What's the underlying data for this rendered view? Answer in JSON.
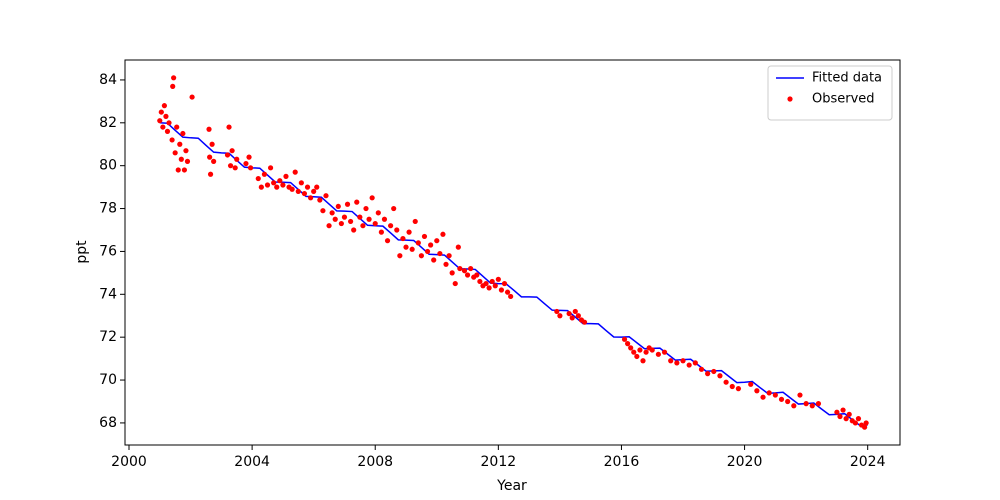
{
  "chart_data": {
    "type": "line",
    "x_label": "Year",
    "y_label": "ppt",
    "xlim": [
      1999.87,
      2025.05
    ],
    "ylim": [
      66.97,
      84.93
    ],
    "xticks": [
      2000,
      2004,
      2008,
      2012,
      2016,
      2020,
      2024
    ],
    "yticks": [
      68,
      70,
      72,
      74,
      76,
      78,
      80,
      82,
      84
    ],
    "grid": false,
    "legend": "upper right",
    "series": [
      {
        "name": "Fitted data",
        "type": "line",
        "color": "#0000ff",
        "x": [
          2001,
          2001.25,
          2001.5,
          2001.75,
          2002,
          2002.25,
          2002.5,
          2002.75,
          2003,
          2003.25,
          2003.5,
          2003.75,
          2004,
          2004.25,
          2004.5,
          2004.75,
          2005,
          2005.25,
          2005.5,
          2005.75,
          2006,
          2006.25,
          2006.5,
          2006.75,
          2007,
          2007.25,
          2007.5,
          2007.75,
          2008,
          2008.25,
          2008.5,
          2008.75,
          2009,
          2009.25,
          2009.5,
          2009.75,
          2010,
          2010.25,
          2010.5,
          2010.75,
          2011,
          2011.25,
          2011.5,
          2011.75,
          2012,
          2012.25,
          2012.5,
          2012.75,
          2013,
          2013.25,
          2013.5,
          2013.75,
          2014,
          2014.25,
          2014.5,
          2014.75,
          2015,
          2015.25,
          2015.5,
          2015.75,
          2016,
          2016.25,
          2016.5,
          2016.75,
          2017,
          2017.25,
          2017.5,
          2017.75,
          2018,
          2018.25,
          2018.5,
          2018.75,
          2019,
          2019.25,
          2019.5,
          2019.75,
          2020,
          2020.25,
          2020.5,
          2020.75,
          2021,
          2021.25,
          2021.5,
          2021.75,
          2022,
          2022.25,
          2022.5,
          2022.75,
          2023,
          2023.25,
          2023.5,
          2023.75,
          2024
        ],
        "values": [
          82.0,
          81.98,
          81.65,
          81.33,
          81.3,
          81.28,
          80.95,
          80.63,
          80.6,
          80.58,
          80.25,
          79.93,
          79.9,
          79.88,
          79.56,
          79.24,
          79.23,
          79.21,
          78.89,
          78.57,
          78.55,
          78.53,
          78.21,
          77.89,
          77.88,
          77.86,
          77.54,
          77.22,
          77.2,
          77.18,
          76.86,
          76.54,
          76.53,
          76.51,
          76.19,
          75.87,
          75.85,
          75.83,
          75.51,
          75.19,
          75.18,
          75.16,
          74.84,
          74.52,
          74.5,
          74.49,
          74.19,
          73.88,
          73.88,
          73.87,
          73.56,
          73.26,
          73.25,
          73.24,
          72.94,
          72.63,
          72.63,
          72.62,
          72.31,
          72.01,
          72.0,
          72.02,
          71.74,
          71.46,
          71.48,
          71.49,
          71.21,
          70.93,
          70.95,
          70.97,
          70.69,
          70.41,
          70.43,
          70.44,
          70.16,
          69.88,
          69.9,
          69.93,
          69.65,
          69.38,
          69.4,
          69.43,
          69.15,
          68.88,
          68.9,
          68.93,
          68.65,
          68.38,
          68.4,
          68.43,
          68.15,
          67.88,
          67.9
        ]
      },
      {
        "name": "Observed",
        "type": "scatter",
        "color": "#ff0000",
        "x": [
          2001.0,
          2001.05,
          2001.1,
          2001.15,
          2001.2,
          2001.25,
          2001.3,
          2001.4,
          2001.42,
          2001.45,
          2001.5,
          2001.55,
          2001.6,
          2001.65,
          2001.7,
          2001.75,
          2001.8,
          2001.85,
          2001.9,
          2002.05,
          2002.6,
          2002.62,
          2002.65,
          2002.7,
          2002.75,
          2003.2,
          2003.25,
          2003.3,
          2003.35,
          2003.45,
          2003.5,
          2003.8,
          2003.9,
          2003.95,
          2004.2,
          2004.3,
          2004.4,
          2004.5,
          2004.6,
          2004.7,
          2004.8,
          2004.9,
          2005.0,
          2005.1,
          2005.2,
          2005.3,
          2005.4,
          2005.5,
          2005.6,
          2005.7,
          2005.8,
          2005.9,
          2006.0,
          2006.1,
          2006.2,
          2006.3,
          2006.4,
          2006.5,
          2006.6,
          2006.7,
          2006.8,
          2006.9,
          2007.0,
          2007.1,
          2007.2,
          2007.3,
          2007.4,
          2007.5,
          2007.6,
          2007.7,
          2007.8,
          2007.9,
          2008.0,
          2008.1,
          2008.2,
          2008.3,
          2008.4,
          2008.5,
          2008.6,
          2008.7,
          2008.8,
          2008.9,
          2009.0,
          2009.1,
          2009.2,
          2009.3,
          2009.4,
          2009.5,
          2009.6,
          2009.7,
          2009.8,
          2009.9,
          2010.0,
          2010.1,
          2010.2,
          2010.3,
          2010.4,
          2010.5,
          2010.6,
          2010.7,
          2010.75,
          2010.9,
          2011.0,
          2011.1,
          2011.2,
          2011.3,
          2011.4,
          2011.5,
          2011.6,
          2011.7,
          2011.8,
          2011.9,
          2012.0,
          2012.1,
          2012.2,
          2012.3,
          2012.4,
          2013.9,
          2014.0,
          2014.3,
          2014.4,
          2014.5,
          2014.6,
          2014.7,
          2014.8,
          2016.1,
          2016.2,
          2016.3,
          2016.4,
          2016.5,
          2016.6,
          2016.7,
          2016.8,
          2016.9,
          2017.0,
          2017.2,
          2017.4,
          2017.6,
          2017.8,
          2018.0,
          2018.2,
          2018.4,
          2018.6,
          2018.8,
          2019.0,
          2019.2,
          2019.4,
          2019.6,
          2019.8,
          2020.2,
          2020.4,
          2020.6,
          2020.8,
          2021.0,
          2021.2,
          2021.4,
          2021.6,
          2021.8,
          2022.0,
          2022.2,
          2022.4,
          2023.0,
          2023.1,
          2023.2,
          2023.3,
          2023.4,
          2023.5,
          2023.6,
          2023.7,
          2023.8,
          2023.9,
          2023.95
        ],
        "values": [
          82.1,
          82.5,
          81.8,
          82.8,
          82.3,
          81.6,
          82.0,
          81.2,
          83.7,
          84.1,
          80.6,
          81.8,
          79.8,
          81.0,
          80.3,
          81.5,
          79.8,
          80.7,
          80.2,
          83.2,
          81.7,
          80.4,
          79.6,
          81.0,
          80.2,
          80.5,
          81.8,
          80.0,
          80.7,
          79.9,
          80.3,
          80.1,
          80.4,
          79.9,
          79.4,
          79.0,
          79.6,
          79.1,
          79.9,
          79.2,
          79.0,
          79.3,
          79.1,
          79.5,
          79.0,
          78.9,
          79.7,
          78.8,
          79.2,
          78.7,
          79.0,
          78.5,
          78.8,
          79.0,
          78.4,
          77.9,
          78.6,
          77.2,
          77.8,
          77.5,
          78.1,
          77.3,
          77.6,
          78.2,
          77.4,
          77.0,
          78.3,
          77.6,
          77.2,
          78.0,
          77.5,
          78.5,
          77.3,
          77.8,
          76.9,
          77.5,
          76.5,
          77.2,
          78.0,
          77.0,
          75.8,
          76.6,
          76.2,
          76.9,
          76.1,
          77.4,
          76.4,
          75.8,
          76.7,
          76.0,
          76.3,
          75.6,
          76.5,
          75.9,
          76.8,
          75.4,
          75.8,
          75.0,
          74.5,
          76.2,
          75.2,
          75.1,
          74.9,
          75.2,
          74.8,
          74.9,
          74.6,
          74.4,
          74.5,
          74.3,
          74.6,
          74.4,
          74.7,
          74.2,
          74.5,
          74.1,
          73.9,
          73.2,
          73.0,
          73.1,
          72.9,
          73.2,
          73.0,
          72.8,
          72.7,
          71.9,
          71.7,
          71.5,
          71.3,
          71.1,
          71.4,
          70.9,
          71.3,
          71.5,
          71.4,
          71.2,
          71.3,
          70.9,
          70.8,
          70.9,
          70.7,
          70.8,
          70.5,
          70.3,
          70.4,
          70.2,
          69.9,
          69.7,
          69.6,
          69.8,
          69.5,
          69.2,
          69.4,
          69.3,
          69.1,
          69.0,
          68.8,
          69.3,
          68.9,
          68.8,
          68.9,
          68.5,
          68.3,
          68.6,
          68.2,
          68.4,
          68.1,
          68.0,
          68.2,
          67.9,
          67.8,
          68.0
        ]
      }
    ]
  }
}
